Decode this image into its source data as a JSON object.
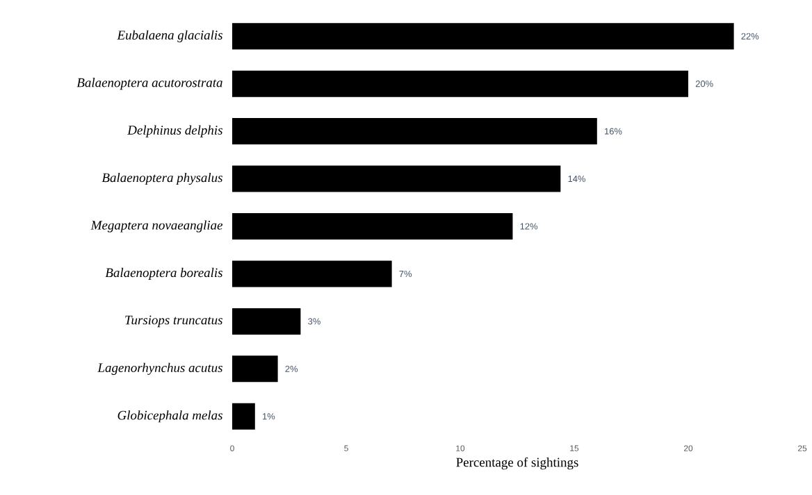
{
  "chart_data": {
    "type": "bar",
    "orientation": "horizontal",
    "categories": [
      "Eubalaena glacialis",
      "Balaenoptera acutorostrata",
      "Delphinus delphis",
      "Balaenoptera physalus",
      "Megaptera novaeangliae",
      "Balaenoptera borealis",
      "Tursiops truncatus",
      "Lagenorhynchus acutus",
      "Globicephala melas"
    ],
    "values": [
      22,
      20,
      16,
      14.4,
      12.3,
      7,
      3,
      2,
      1
    ],
    "value_labels": [
      "22%",
      "20%",
      "16%",
      "14%",
      "12%",
      "7%",
      "3%",
      "2%",
      "1%"
    ],
    "color": "#000000",
    "xlim": [
      0,
      25
    ],
    "xticks": [
      0,
      5,
      10,
      15,
      20,
      25
    ],
    "xlabel": "Percentage of sightings"
  }
}
